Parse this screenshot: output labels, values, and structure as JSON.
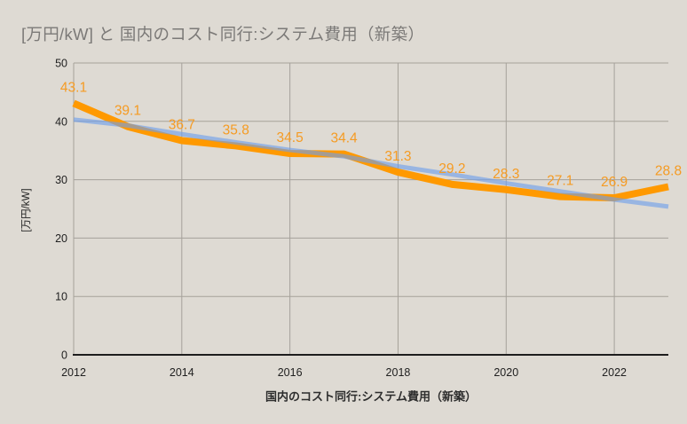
{
  "page": {
    "background": "#dedad3"
  },
  "title": {
    "text": "[万円/kW] と 国内のコスト同行:システム費用（新築）",
    "color": "#7b7977"
  },
  "caption": {
    "text": "国内のコスト同行:システム費用（新築）"
  },
  "colors": {
    "background": "#dedad3",
    "gridline": "#a5a19a",
    "axis_line": "#1d1d1d",
    "tick_text": "#212121",
    "series_orange": "#ff9900",
    "series_trend_blue": "#6d9eeb",
    "data_label_orange": "#f59b23"
  },
  "chart_data": {
    "type": "line",
    "title": "[万円/kW] と 国内のコスト同行:システム費用（新築）",
    "ylabel": "[万円/kW]",
    "caption": "国内のコスト同行:システム費用（新築）",
    "x": [
      2012,
      2013,
      2014,
      2015,
      2016,
      2017,
      2018,
      2019,
      2020,
      2021,
      2022,
      2023
    ],
    "series": [
      {
        "name": "国内のコスト同行:システム費用（新築）",
        "role": "main-series",
        "color": "#ff9900",
        "stroke_width": 8,
        "opacity": 1,
        "values": [
          43.1,
          39.1,
          36.7,
          35.8,
          34.5,
          34.4,
          31.3,
          29.2,
          28.3,
          27.1,
          26.9,
          28.8
        ],
        "data_labels": true,
        "label_color": "#f59b23"
      },
      {
        "name": "trend",
        "role": "trendline",
        "color": "#6d9eeb",
        "stroke_width": 5,
        "opacity": 0.62,
        "values": [
          40.3,
          39.3,
          37.8,
          36.4,
          35.1,
          34.0,
          32.3,
          30.9,
          29.4,
          28.0,
          26.6,
          25.4
        ],
        "data_labels": false
      }
    ],
    "xlim": [
      2012,
      2023
    ],
    "ylim": [
      0,
      50
    ],
    "x_ticks_labeled": [
      2012,
      2014,
      2016,
      2018,
      2020,
      2022
    ],
    "y_ticks": [
      0,
      10,
      20,
      30,
      40,
      50
    ],
    "grid": {
      "horizontal": true,
      "vertical": "even-years"
    },
    "legend_position": "none"
  }
}
